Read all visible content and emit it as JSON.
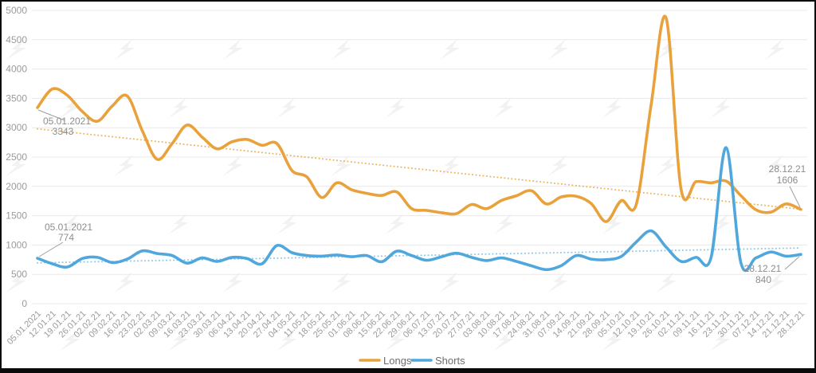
{
  "chart_data": {
    "type": "line",
    "x_labels": [
      "05.01.2021",
      "12.01.21",
      "19.01.21",
      "26.01.21",
      "02.02.21",
      "09.02.21",
      "16.02.21",
      "23.02.21",
      "02.03.21",
      "09.03.21",
      "16.03.21",
      "23.03.21",
      "30.03.21",
      "06.04.21",
      "13.04.21",
      "20.04.21",
      "27.04.21",
      "04.05.21",
      "11.05.21",
      "18.05.21",
      "25.05.21",
      "01.06.21",
      "08.06.21",
      "15.06.21",
      "22.06.21",
      "29.06.21",
      "06.07.21",
      "13.07.21",
      "20.07.21",
      "27.07.21",
      "03.08.21",
      "10.08.21",
      "17.08.21",
      "24.08.21",
      "31.08.21",
      "07.09.21",
      "14.09.21",
      "21.09.21",
      "28.09.21",
      "05.10.21",
      "12.10.21",
      "19.10.21",
      "26.10.21",
      "02.11.21",
      "09.11.21",
      "16.11.21",
      "23.11.21",
      "30.11.21",
      "07.12.21",
      "14.12.21",
      "21.12.21",
      "28.12.21"
    ],
    "series": [
      {
        "name": "Longs",
        "color": "#E9A23B",
        "values": [
          3343,
          3660,
          3550,
          3275,
          3110,
          3370,
          3540,
          2950,
          2460,
          2730,
          3045,
          2840,
          2640,
          2760,
          2800,
          2700,
          2730,
          2270,
          2160,
          1810,
          2060,
          1940,
          1880,
          1845,
          1905,
          1620,
          1590,
          1550,
          1535,
          1690,
          1620,
          1760,
          1840,
          1925,
          1700,
          1820,
          1830,
          1705,
          1400,
          1755,
          1690,
          3400,
          4870,
          1950,
          2080,
          2060,
          2090,
          1840,
          1600,
          1560,
          1700,
          1606
        ]
      },
      {
        "name": "Shorts",
        "color": "#4FA7DD",
        "values": [
          774,
          680,
          625,
          770,
          790,
          700,
          760,
          900,
          855,
          820,
          690,
          780,
          720,
          790,
          770,
          680,
          990,
          870,
          820,
          810,
          830,
          800,
          820,
          715,
          895,
          820,
          740,
          800,
          860,
          790,
          735,
          780,
          720,
          645,
          580,
          650,
          820,
          760,
          750,
          805,
          1050,
          1240,
          965,
          720,
          790,
          785,
          2660,
          690,
          780,
          880,
          810,
          840
        ]
      }
    ],
    "trendlines": [
      {
        "series": "Longs",
        "color": "#EDB45E",
        "start": 2980,
        "end": 1610
      },
      {
        "series": "Shorts",
        "color": "#8CC8EA",
        "start": 695,
        "end": 950
      }
    ],
    "y_axis": {
      "min": 0,
      "max": 5000,
      "step": 500,
      "labels": [
        "0",
        "500",
        "1000",
        "1500",
        "2000",
        "2500",
        "3000",
        "3500",
        "4000",
        "4500",
        "5000"
      ]
    },
    "annotations": [
      {
        "series": "Longs",
        "point": "first",
        "date": "05.01.2021",
        "value": "3343"
      },
      {
        "series": "Shorts",
        "point": "first",
        "date": "05.01.2021",
        "value": "774"
      },
      {
        "series": "Longs",
        "point": "last",
        "date": "28.12.21",
        "value": "1606"
      },
      {
        "series": "Shorts",
        "point": "last",
        "date": "28.12.21",
        "value": "840"
      }
    ],
    "legend": [
      {
        "label": "Longs",
        "color": "#E9A23B"
      },
      {
        "label": "Shorts",
        "color": "#4FA7DD"
      }
    ],
    "grid": true,
    "legend_position": "bottom-center"
  },
  "style_colors": {
    "gridline": "#e8e8e8",
    "axis_text": "#9b9b9b",
    "annotation_text": "#8d8d8d",
    "annotation_line": "#9e9e9e",
    "legend_text": "#6e6e6e",
    "border": "#0b0b0b",
    "watermark": "#f2f2f2",
    "background": "#ffffff"
  },
  "watermark": {
    "name": "forklog-logo"
  }
}
